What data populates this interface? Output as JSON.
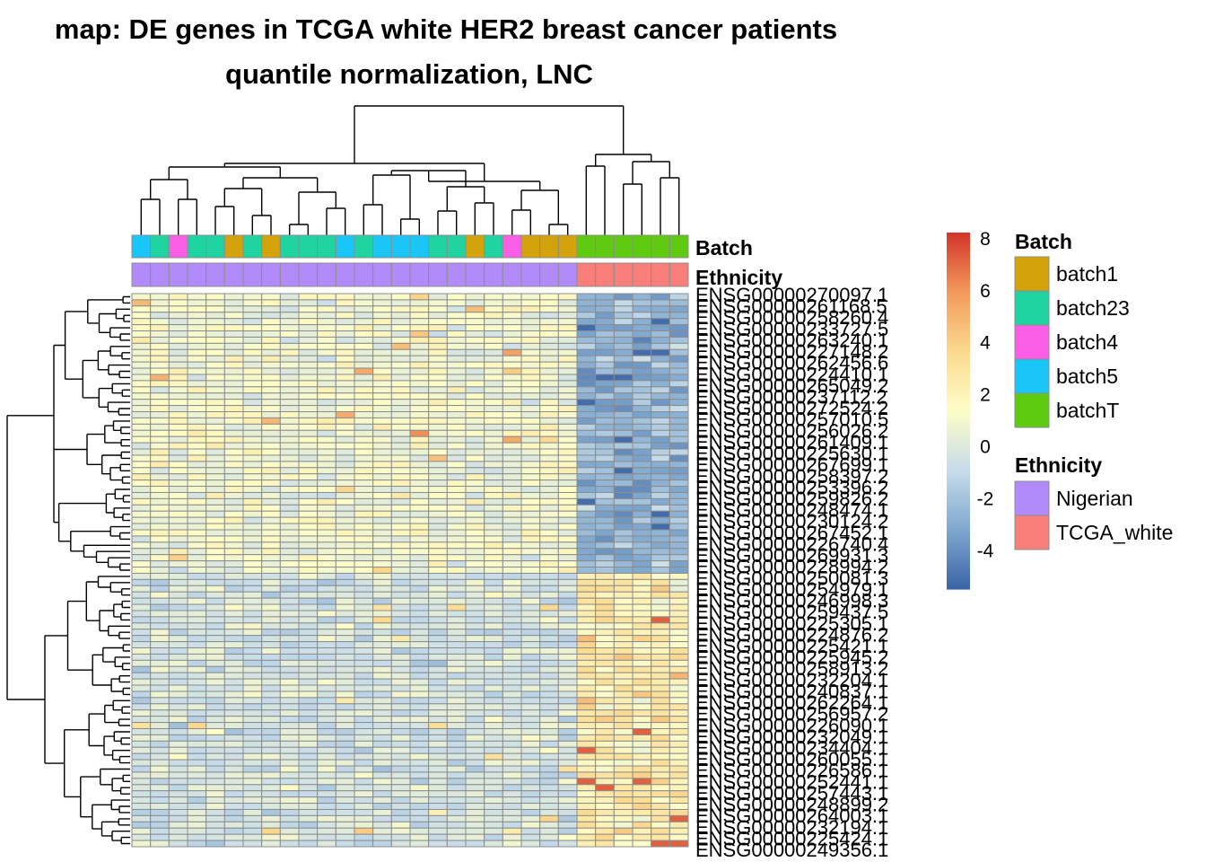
{
  "chart_data": {
    "type": "heatmap",
    "title": "map: DE genes in TCGA white HER2 breast cancer patients",
    "subtitle": "quantile normalization, LNC",
    "n_rows": 89,
    "n_cols": 30,
    "column_annotations": [
      {
        "name": "Batch",
        "values": [
          "batch5",
          "batch23",
          "batch4",
          "batch23",
          "batch23",
          "batch1",
          "batch23",
          "batch1",
          "batch23",
          "batch23",
          "batch23",
          "batch5",
          "batch23",
          "batch5",
          "batch5",
          "batch5",
          "batch23",
          "batch23",
          "batch1",
          "batch23",
          "batch4",
          "batch1",
          "batch1",
          "batch1",
          "batchT",
          "batchT",
          "batchT",
          "batchT",
          "batchT",
          "batchT"
        ]
      },
      {
        "name": "Ethnicity",
        "values": [
          "Nigerian",
          "Nigerian",
          "Nigerian",
          "Nigerian",
          "Nigerian",
          "Nigerian",
          "Nigerian",
          "Nigerian",
          "Nigerian",
          "Nigerian",
          "Nigerian",
          "Nigerian",
          "Nigerian",
          "Nigerian",
          "Nigerian",
          "Nigerian",
          "Nigerian",
          "Nigerian",
          "Nigerian",
          "Nigerian",
          "Nigerian",
          "Nigerian",
          "Nigerian",
          "Nigerian",
          "TCGA_white",
          "TCGA_white",
          "TCGA_white",
          "TCGA_white",
          "TCGA_white",
          "TCGA_white"
        ]
      }
    ],
    "row_labels": [
      "ENSG00000270097.1",
      "ENSG00000261168.5",
      "ENSG00000258260.4",
      "ENSG00000233727.5",
      "ENSG00000263240.1",
      "ENSG00000227148.2",
      "ENSG00000262456.6",
      "ENSG00000224410.1",
      "ENSG00000265049.2",
      "ENSG00000237112.2",
      "ENSG00000272524.2",
      "ENSG00000257010.5",
      "ENSG00000256026.2",
      "ENSG00000261409.1",
      "ENSG00000225630.1",
      "ENSG00000267699.1",
      "ENSG00000258397.2",
      "ENSG00000253396.2",
      "ENSG00000259826.2",
      "ENSG00000248474.1",
      "ENSG00000230124.2",
      "ENSG00000267452.1",
      "ENSG00000226740.4",
      "ENSG00000269931.3",
      "ENSG00000228994.2",
      "ENSG00000250081.3",
      "ENSG00000254979.1",
      "ENSG00000246998.3",
      "ENSG00000259437.5",
      "ENSG00000225305.1",
      "ENSG00000224876.2",
      "ENSG00000225421.1",
      "ENSG00000225945.2",
      "ENSG00000258913.2",
      "ENSG00000232204.1",
      "ENSG00000240837.1",
      "ENSG00000262264.1",
      "ENSG00000256957.2",
      "ENSG00000226090.1",
      "ENSG00000232049.1",
      "ENSG00000234404.1",
      "ENSG00000260055.1",
      "ENSG00000226586.1",
      "ENSG00000252441.1",
      "ENSG00000257443.1",
      "ENSG00000248899.2",
      "ENSG00000264003.1",
      "ENSG00000232194.1",
      "ENSG00000225424.1",
      "ENSG00000249356.1"
    ],
    "color_scale": {
      "name": "",
      "min": -5.5,
      "max": 8.2,
      "ticks": [
        -4,
        -2,
        0,
        2,
        4,
        6,
        8
      ],
      "colors": [
        "#3a63a6",
        "#7fa8cf",
        "#c7dcea",
        "#fdfdc8",
        "#fbd98e",
        "#f39a5c",
        "#d2342a"
      ]
    },
    "legend_placement": "right",
    "grid": true,
    "cell_border_color": "#8c8c8c",
    "description_of_values": "Nigerian columns cluster near 0 (light yellow / light blue); TCGA_white columns are strongly negative (blue) in upper row cluster and strongly positive (orange/red) in lower row cluster"
  },
  "legends": {
    "batch": {
      "title": "Batch",
      "items": [
        {
          "label": "batch1",
          "color": "#d4a30c"
        },
        {
          "label": "batch23",
          "color": "#1fd4a0"
        },
        {
          "label": "batch4",
          "color": "#fa5ee6"
        },
        {
          "label": "batch5",
          "color": "#1ac6f7"
        },
        {
          "label": "batchT",
          "color": "#5ecb10"
        }
      ]
    },
    "ethnicity": {
      "title": "Ethnicity",
      "items": [
        {
          "label": "Nigerian",
          "color": "#b18bf9"
        },
        {
          "label": "TCGA_white",
          "color": "#f9807a"
        }
      ]
    }
  }
}
